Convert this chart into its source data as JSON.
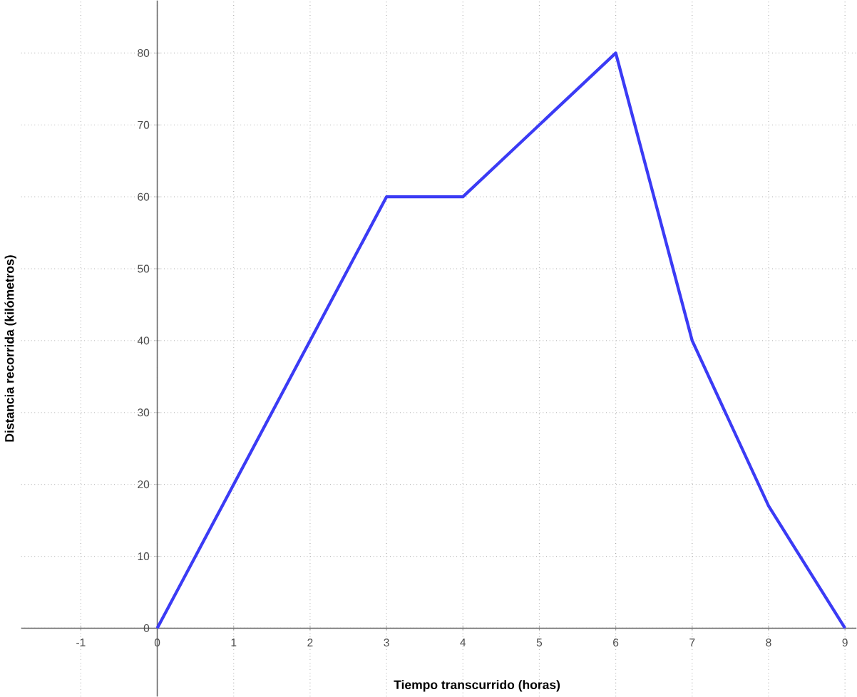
{
  "chart_data": {
    "type": "line",
    "xlabel": "Tiempo transcurrido (horas)",
    "ylabel": "Distancia recorrida (kilómetros)",
    "x": [
      0,
      1,
      2,
      3,
      4,
      5,
      6,
      7,
      8,
      9
    ],
    "series": [
      {
        "color": "#3b3bf5",
        "values": [
          0,
          20,
          40,
          60,
          60,
          70,
          80,
          40,
          17,
          0
        ]
      }
    ],
    "xlim": [
      -1.78,
      9.15
    ],
    "ylim": [
      -9.5,
      87.3
    ],
    "xticks": [
      -1,
      0,
      1,
      2,
      3,
      4,
      5,
      6,
      7,
      8,
      9
    ],
    "yticks": [
      0,
      10,
      20,
      30,
      40,
      50,
      60,
      70,
      80
    ],
    "grid": true,
    "marker": "none",
    "line_style": "solid"
  }
}
